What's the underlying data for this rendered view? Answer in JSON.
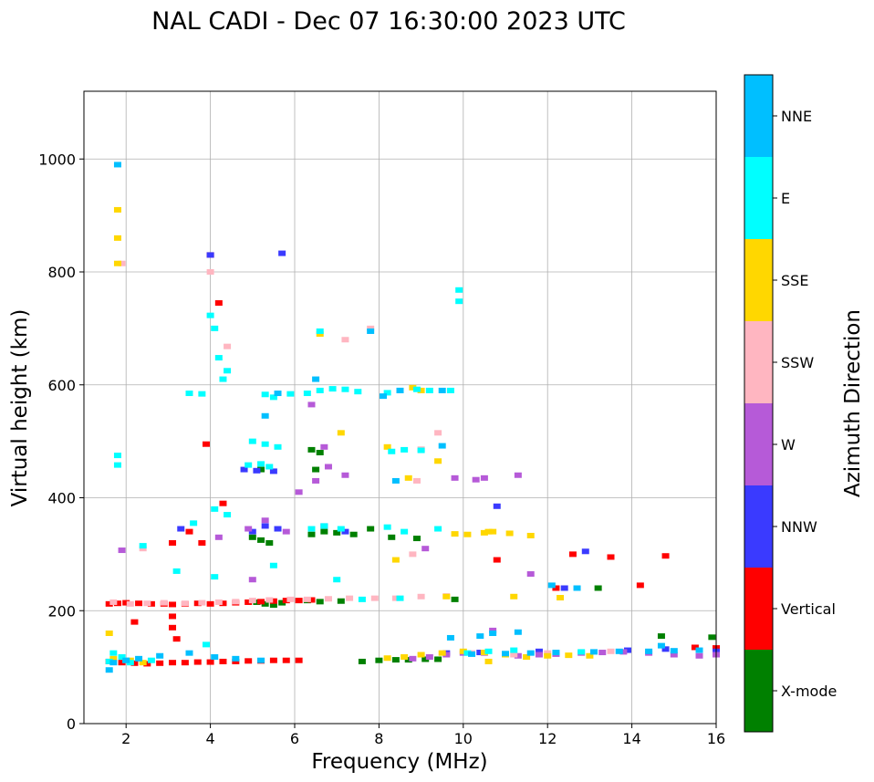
{
  "chart_data": {
    "type": "scatter",
    "title": "NAL CADI - Dec 07 16:30:00 2023 UTC",
    "xlabel": "Frequency (MHz)",
    "ylabel": "Virtual height (km)",
    "xlim": [
      1,
      16
    ],
    "ylim": [
      0,
      1120
    ],
    "xticks": [
      2,
      4,
      6,
      8,
      10,
      12,
      14,
      16
    ],
    "yticks": [
      0,
      200,
      400,
      600,
      800,
      1000
    ],
    "grid": true,
    "colorbar": {
      "label": "Azimuth Direction",
      "categories": [
        {
          "name": "X-mode",
          "color": "#008000"
        },
        {
          "name": "Vertical",
          "color": "#ff0000"
        },
        {
          "name": "NNW",
          "color": "#3a3aff"
        },
        {
          "name": "W",
          "color": "#b65ad8"
        },
        {
          "name": "SSW",
          "color": "#ffb6c1"
        },
        {
          "name": "SSE",
          "color": "#ffd700"
        },
        {
          "name": "E",
          "color": "#00ffff"
        },
        {
          "name": "NNE",
          "color": "#00bfff"
        }
      ]
    },
    "series": [
      {
        "name": "X-mode",
        "x": [
          5.1,
          5.3,
          5.5,
          5.7,
          6.3,
          6.6,
          7.1,
          7.6,
          8.0,
          8.4,
          8.7,
          9.1,
          9.4,
          5.0,
          5.2,
          5.4,
          6.4,
          6.7,
          7.0,
          7.4,
          8.3,
          8.9,
          14.7,
          15.9,
          6.5,
          5.2,
          6.4,
          6.6,
          7.8,
          13.2,
          9.8
        ],
        "y": [
          215,
          212,
          210,
          214,
          218,
          216,
          217,
          110,
          112,
          113,
          113,
          114,
          114,
          330,
          325,
          320,
          335,
          340,
          338,
          335,
          330,
          328,
          155,
          153,
          450,
          450,
          485,
          480,
          345,
          240,
          220
        ]
      },
      {
        "name": "Vertical",
        "x": [
          1.6,
          1.8,
          2.0,
          2.3,
          2.6,
          2.9,
          3.1,
          3.4,
          3.7,
          4.0,
          4.3,
          4.6,
          4.9,
          5.2,
          5.5,
          5.8,
          6.1,
          6.4,
          1.6,
          1.9,
          2.2,
          2.5,
          2.8,
          3.1,
          3.4,
          3.7,
          4.0,
          4.3,
          4.6,
          4.9,
          5.2,
          5.5,
          5.8,
          6.1,
          3.1,
          3.1,
          3.2,
          2.2,
          3.5,
          3.8,
          4.0,
          4.2,
          4.3,
          3.9,
          3.1,
          10.8,
          12.6,
          13.5,
          14.8,
          14.2,
          12.2,
          15.5,
          16.0
        ],
        "y": [
          212,
          213,
          214,
          213,
          212,
          212,
          211,
          212,
          213,
          212,
          213,
          214,
          215,
          216,
          217,
          218,
          218,
          219,
          110,
          108,
          107,
          106,
          107,
          108,
          108,
          109,
          109,
          110,
          110,
          111,
          111,
          112,
          112,
          112,
          190,
          170,
          150,
          180,
          340,
          320,
          830,
          745,
          390,
          495,
          320,
          290,
          300,
          295,
          297,
          245,
          240,
          135,
          134
        ]
      },
      {
        "name": "NNW",
        "x": [
          4.0,
          3.3,
          5.0,
          5.3,
          5.6,
          6.7,
          7.2,
          4.8,
          5.1,
          5.5,
          5.7,
          10.8,
          12.4,
          12.9,
          9.6,
          10.4,
          11.8,
          13.9,
          14.8,
          16.0
        ],
        "y": [
          830,
          345,
          340,
          350,
          345,
          350,
          340,
          450,
          448,
          447,
          833,
          385,
          240,
          305,
          125,
          126,
          128,
          130,
          132,
          128
        ]
      },
      {
        "name": "W",
        "x": [
          4.2,
          4.9,
          5.3,
          5.8,
          6.1,
          6.5,
          6.8,
          7.2,
          8.8,
          9.2,
          9.6,
          10.0,
          10.5,
          11.3,
          11.8,
          12.2,
          12.8,
          13.3,
          13.8,
          14.4,
          15.0,
          15.6,
          16.0,
          6.4,
          6.7,
          9.8,
          10.3,
          10.5,
          11.3,
          9.1,
          11.6,
          1.9,
          5.0,
          10.7
        ],
        "y": [
          330,
          345,
          360,
          340,
          410,
          430,
          455,
          440,
          115,
          118,
          122,
          125,
          125,
          120,
          122,
          123,
          125,
          126,
          127,
          125,
          122,
          120,
          122,
          565,
          490,
          435,
          432,
          435,
          440,
          310,
          265,
          307,
          255,
          165
        ]
      },
      {
        "name": "SSW",
        "x": [
          1.7,
          2.1,
          2.5,
          2.9,
          3.4,
          3.8,
          4.2,
          4.6,
          5.0,
          5.4,
          5.9,
          6.3,
          6.8,
          7.3,
          7.9,
          8.4,
          9.0,
          9.6,
          4.0,
          4.4,
          1.9,
          2.4,
          8.8,
          9.4,
          7.2,
          7.8,
          8.9,
          9.0,
          10.2,
          11.2,
          12.0,
          13.5
        ],
        "y": [
          215,
          212,
          213,
          214,
          213,
          214,
          215,
          216,
          218,
          219,
          220,
          220,
          221,
          222,
          222,
          222,
          225,
          226,
          800,
          668,
          815,
          310,
          300,
          515,
          680,
          700,
          430,
          486,
          125,
          122,
          125,
          128
        ]
      },
      {
        "name": "SSE",
        "x": [
          1.8,
          1.8,
          1.8,
          1.6,
          1.7,
          2.1,
          2.4,
          8.2,
          8.6,
          9.0,
          9.5,
          10.0,
          10.5,
          11.0,
          11.5,
          12.0,
          12.5,
          13.0,
          9.8,
          10.1,
          10.5,
          10.7,
          11.1,
          11.6,
          8.8,
          9.6,
          8.7,
          10.6,
          6.6,
          7.1,
          8.2,
          8.4,
          9.0,
          11.2,
          12.3,
          9.4,
          10.6
        ],
        "y": [
          910,
          860,
          815,
          160,
          115,
          112,
          108,
          116,
          118,
          122,
          125,
          128,
          126,
          122,
          118,
          120,
          121,
          120,
          336,
          335,
          338,
          340,
          337,
          333,
          595,
          225,
          435,
          110,
          690,
          515,
          490,
          290,
          590,
          225,
          223,
          465,
          340
        ]
      },
      {
        "name": "E",
        "x": [
          4.0,
          4.2,
          4.3,
          3.5,
          3.8,
          5.3,
          5.5,
          5.9,
          6.3,
          6.6,
          6.9,
          7.2,
          7.5,
          8.2,
          8.5,
          8.9,
          9.2,
          8.3,
          8.6,
          9.0,
          5.0,
          5.3,
          5.6,
          4.9,
          5.2,
          5.4,
          6.4,
          6.7,
          7.1,
          8.2,
          8.6,
          9.4,
          1.8,
          1.8,
          4.1,
          4.4,
          9.9,
          9.9,
          6.6,
          4.1,
          4.4,
          3.6,
          4.1,
          2.4,
          3.2,
          1.6,
          1.7,
          1.9,
          2.0,
          2.1,
          2.6,
          3.9,
          5.5,
          7.0,
          7.6,
          8.5,
          9.7,
          10.1,
          10.6,
          11.2,
          12.8
        ],
        "y": [
          723,
          648,
          610,
          585,
          584,
          583,
          578,
          584,
          585,
          590,
          593,
          592,
          588,
          586,
          590,
          592,
          590,
          482,
          485,
          484,
          500,
          495,
          490,
          458,
          460,
          455,
          345,
          350,
          345,
          348,
          340,
          345,
          475,
          458,
          700,
          625,
          768,
          748,
          695,
          380,
          370,
          355,
          260,
          315,
          270,
          110,
          125,
          118,
          112,
          108,
          112,
          140,
          280,
          255,
          220,
          222,
          590,
          125,
          128,
          130,
          127
        ]
      },
      {
        "name": "NNE",
        "x": [
          1.8,
          1.6,
          1.7,
          2.0,
          2.3,
          2.8,
          3.5,
          4.1,
          4.6,
          5.2,
          5.6,
          5.3,
          6.5,
          7.8,
          8.5,
          9.5,
          10.2,
          11.0,
          11.6,
          12.2,
          13.1,
          13.7,
          14.4,
          15.0,
          15.6,
          8.1,
          8.4,
          9.5,
          12.1,
          12.7,
          9.7,
          10.4,
          10.7,
          11.3,
          14.7
        ],
        "y": [
          990,
          95,
          108,
          112,
          115,
          120,
          125,
          118,
          115,
          112,
          585,
          545,
          610,
          695,
          590,
          590,
          123,
          124,
          125,
          126,
          127,
          128,
          128,
          129,
          130,
          580,
          430,
          492,
          245,
          240,
          152,
          155,
          160,
          162,
          138
        ]
      }
    ]
  }
}
